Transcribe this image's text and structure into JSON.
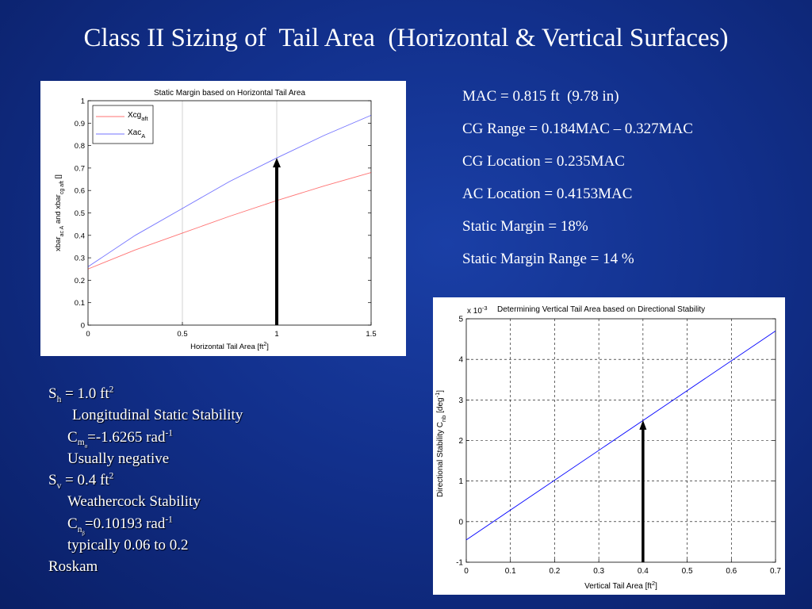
{
  "slide": {
    "title": "Class II Sizing of  Tail Area  (Horizontal & Vertical Surfaces)"
  },
  "info": [
    "MAC = 0.815 ft  (9.78 in)",
    "CG Range = 0.184MAC – 0.327MAC",
    "CG Location = 0.235MAC",
    "AC Location = 0.4153MAC",
    "Static Margin = 18%",
    "Static Margin Range = 14 %"
  ],
  "notes": {
    "sh_base": "S",
    "sh_sub": "h",
    "sh_rest": " = 1.0 ft",
    "sh_sup": "2",
    "longitudinal": "Longitudinal Static Stability",
    "cm_base": "C",
    "cm_sub": "m",
    "cm_subsub": "α",
    "cm_rest": "=-1.6265 rad",
    "cm_sup": "-1",
    "cm_note": "Usually negative",
    "sv_base": "S",
    "sv_sub": "v",
    "sv_rest": " = 0.4 ft",
    "sv_sup": "2",
    "weathercock": "Weathercock Stability",
    "cn_base": "C",
    "cn_sub": "n",
    "cn_subsub": "β",
    "cn_rest": "=0.10193 rad",
    "cn_sup": "-1",
    "cn_note": "typically 0.06 to 0.2",
    "source": "Roskam"
  },
  "colors": {
    "background": "#12308c",
    "series_blue": "#0000ff",
    "series_red": "#ff0000",
    "arrow": "#000000"
  },
  "chart_data": [
    {
      "type": "line",
      "title": "Static Margin based on Horizontal Tail Area",
      "xlabel_parts": [
        "Horizontal Tail Area [ft",
        "2",
        "]"
      ],
      "ylabel_parts": [
        "xbar",
        "ac A",
        " and xbar",
        "cg aft",
        "  []"
      ],
      "xlim": [
        0,
        1.5
      ],
      "ylim": [
        0,
        1
      ],
      "xticks": [
        0,
        0.5,
        1,
        1.5
      ],
      "xtick_labels": [
        "0",
        "0.5",
        "1",
        "1.5"
      ],
      "yticks": [
        0,
        0.1,
        0.2,
        0.3,
        0.4,
        0.5,
        0.6,
        0.7,
        0.8,
        0.9,
        1
      ],
      "ytick_labels": [
        "0",
        "0.1",
        "0.2",
        "0.3",
        "0.4",
        "0.5",
        "0.6",
        "0.7",
        "0.8",
        "0.9",
        "1"
      ],
      "grid": "major-x",
      "legend_position": "top-left",
      "series": [
        {
          "name_base": "Xcg",
          "name_sub": "aft",
          "color": "#ff0000",
          "x": [
            0,
            0.25,
            0.5,
            0.75,
            1.0,
            1.25,
            1.5
          ],
          "y": [
            0.25,
            0.335,
            0.41,
            0.485,
            0.555,
            0.62,
            0.68
          ]
        },
        {
          "name_base": "Xac",
          "name_sub": "A",
          "color": "#0000ff",
          "x": [
            0,
            0.25,
            0.5,
            0.75,
            1.0,
            1.25,
            1.5
          ],
          "y": [
            0.26,
            0.4,
            0.52,
            0.64,
            0.745,
            0.845,
            0.935
          ]
        }
      ],
      "annotation": {
        "type": "arrow",
        "x": 1.0,
        "y_from": 0,
        "y_to": 0.745
      }
    },
    {
      "type": "line",
      "title": "Determining Vertical Tail Area based on Directional Stability",
      "exponent_base": "x 10",
      "exponent_sup": "-3",
      "xlabel_parts": [
        "Vertical Tail Area [ft",
        "2",
        "]"
      ],
      "ylabel_parts": [
        "Directional Stability   C",
        "nb",
        "  [deg",
        "-1",
        "]"
      ],
      "xlim": [
        0,
        0.7
      ],
      "ylim": [
        -1,
        5
      ],
      "xticks": [
        0,
        0.1,
        0.2,
        0.3,
        0.4,
        0.5,
        0.6,
        0.7
      ],
      "xtick_labels": [
        "0",
        "0.1",
        "0.2",
        "0.3",
        "0.4",
        "0.5",
        "0.6",
        "0.7"
      ],
      "yticks": [
        -1,
        0,
        1,
        2,
        3,
        4,
        5
      ],
      "ytick_labels": [
        "-1",
        "0",
        "1",
        "2",
        "3",
        "4",
        "5"
      ],
      "grid": "dashed",
      "series": [
        {
          "color": "#0000ff",
          "x": [
            0,
            0.7
          ],
          "y": [
            -0.45,
            4.7
          ]
        }
      ],
      "annotation": {
        "type": "arrow",
        "x": 0.4,
        "y_from": -1,
        "y_to": 2.5
      }
    }
  ]
}
